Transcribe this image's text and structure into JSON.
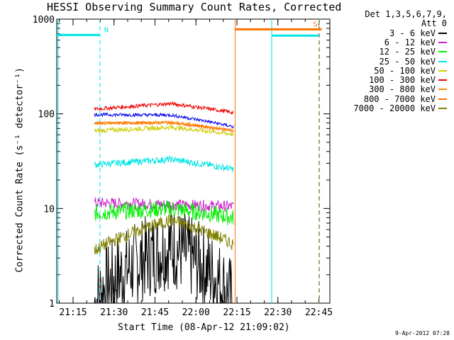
{
  "chart_data": {
    "type": "line",
    "title": "HESSI Observing Summary Count Rates, Corrected",
    "xlabel": "Start Time (08-Apr-12 21:09:02)",
    "ylabel": "Corrected Count Rate (s⁻¹ detector⁻¹)",
    "yscale": "log",
    "ylim": [
      1,
      1000
    ],
    "xlim_minutes": [
      0,
      100
    ],
    "x_ticks": [
      {
        "label": "21:15",
        "minute": 5.97
      },
      {
        "label": "21:30",
        "minute": 20.97
      },
      {
        "label": "21:45",
        "minute": 35.97
      },
      {
        "label": "22:00",
        "minute": 50.97
      },
      {
        "label": "22:15",
        "minute": 65.97
      },
      {
        "label": "22:30",
        "minute": 80.97
      },
      {
        "label": "22:45",
        "minute": 95.97
      }
    ],
    "y_ticks": [
      {
        "label": "1",
        "value": 1
      },
      {
        "label": "10",
        "value": 10
      },
      {
        "label": "100",
        "value": 100
      },
      {
        "label": "1000",
        "value": 1000
      }
    ],
    "legend_header": [
      "Det 1,3,5,6,7,9,",
      "Att 0"
    ],
    "data_window_minutes": [
      13.8,
      64.7
    ],
    "series": [
      {
        "name": "3 - 6 keV",
        "color": "#000000",
        "start": 1.0,
        "mid": 4.0,
        "end": 1.0
      },
      {
        "name": "6 - 12 keV",
        "color": "#cc22cc",
        "start": 11.5,
        "mid": 11.0,
        "end": 10.5
      },
      {
        "name": "12 - 25 keV",
        "color": "#00ee00",
        "start": 9.0,
        "mid": 10.0,
        "end": 8.0
      },
      {
        "name": "25 - 50 keV",
        "color": "#00e5e5",
        "start": 29,
        "mid": 33,
        "end": 26
      },
      {
        "name": "50 - 100 keV",
        "color": "#cccc00",
        "start": 66,
        "mid": 72,
        "end": 61
      },
      {
        "name": "100 - 300 keV",
        "color": "#ee0000",
        "start": 112,
        "mid": 128,
        "end": 103
      },
      {
        "name": "300 - 800 keV",
        "color": "#ff8c00",
        "start": 79,
        "mid": 82,
        "end": 67
      },
      {
        "name": "800 - 7000 keV",
        "color": "#ff7000",
        "start": 80,
        "mid": 80,
        "end": 66
      },
      {
        "name": "7000 - 20000 keV",
        "color": "#808000",
        "start": 3.6,
        "mid": 7.5,
        "end": 4.2
      }
    ],
    "blue_series_color": "#0000ee",
    "blue_series": {
      "start": 98,
      "mid": 97,
      "end": 73
    },
    "flag_segments": [
      {
        "label": "N",
        "color": "#00e5e5",
        "from": 0,
        "to": 15.8,
        "value": 680
      },
      {
        "label": "S",
        "color": "#ff7000",
        "from": 65.3,
        "to": 97.0,
        "value": 780
      },
      {
        "label": "",
        "color": "#00e5e5",
        "from": 78.7,
        "to": 96.0,
        "value": 670
      }
    ],
    "vertical_markers": [
      {
        "minute": 0.5,
        "color": "#00e5e5",
        "style": "solid"
      },
      {
        "minute": 15.8,
        "color": "#00e5e5",
        "style": "dashed"
      },
      {
        "minute": 65.3,
        "color": "#ff7000",
        "style": "solid"
      },
      {
        "minute": 78.7,
        "color": "#00e5e5",
        "style": "solid"
      },
      {
        "minute": 96.0,
        "color": "#00e5e5",
        "style": "dashed"
      },
      {
        "minute": 96.2,
        "color": "#ff7000",
        "style": "dashed"
      }
    ]
  },
  "footer": "9-Apr-2012 07:28"
}
